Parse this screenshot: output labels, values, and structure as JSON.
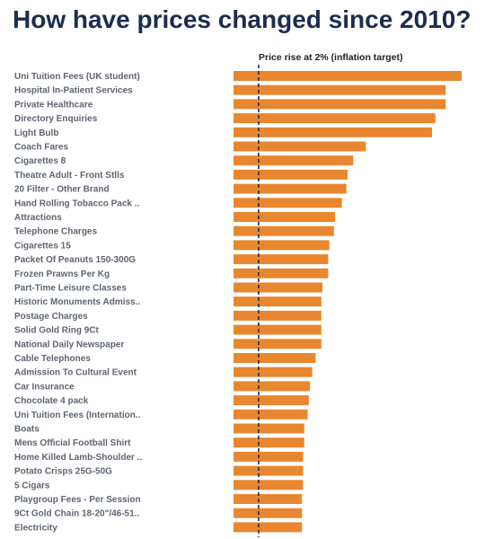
{
  "title": "How have prices changed since 2010?",
  "reference_label": "Price rise at 2% (inflation target)",
  "colors": {
    "bar": "#e8872f",
    "title": "#1b2d4f",
    "label": "#5e6570",
    "reference_line": "#1b2d4f"
  },
  "chart_data": {
    "type": "bar",
    "orientation": "horizontal",
    "title": "How have prices changed since 2010?",
    "xlabel": "",
    "ylabel": "",
    "xlim": [
      0,
      100
    ],
    "grid": false,
    "reference_line": {
      "value": 11,
      "label": "Price rise at 2% (inflation target)",
      "style": "dashed"
    },
    "categories": [
      "Uni Tuition Fees (UK student)",
      "Hospital In-Patient Services",
      "Private Healthcare",
      "Directory Enquiries",
      "Light Bulb",
      "Coach Fares",
      "Cigarettes 8",
      "Theatre Adult - Front Stlls",
      "20 Filter - Other Brand",
      "Hand Rolling Tobacco Pack ..",
      "Attractions",
      "Telephone Charges",
      "Cigarettes 15",
      "Packet Of Peanuts 150-300G",
      "Frozen Prawns Per Kg",
      "Part-Time Leisure Classes",
      "Historic Monuments Admiss..",
      "Postage Charges",
      "Solid Gold Ring 9Ct",
      "National Daily Newspaper",
      "Cable Telephones",
      "Admission To Cultural Event",
      "Car Insurance",
      "Chocolate  4 pack",
      "Uni Tuition Fees (Internation..",
      "Boats",
      "Mens Official Football Shirt",
      "Home Killed Lamb-Shoulder ..",
      "Potato Crisps 25G-50G",
      "5 Cigars",
      "Playgroup Fees - Per Session",
      "9Ct Gold Chain 18-20\"/46-51..",
      "Electricity"
    ],
    "values": [
      100,
      93,
      93,
      88.5,
      87,
      58,
      52.5,
      50,
      49.5,
      47.5,
      44.5,
      44,
      42,
      41.5,
      41.5,
      39,
      38.5,
      38.5,
      38.5,
      38.5,
      36,
      34.5,
      33.5,
      33,
      32.5,
      31,
      31,
      30.5,
      30.5,
      30.5,
      30,
      30,
      30
    ]
  }
}
